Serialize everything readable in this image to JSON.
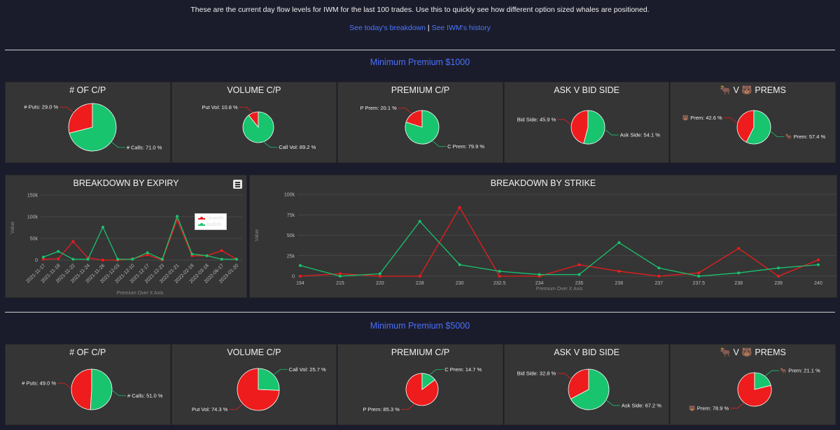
{
  "intro_text": "These are the current day flow levels for IWM for the last 100 trades. Use this to quickly see how different option sized whales are positioned.",
  "links": {
    "breakdown": "See today's breakdown",
    "separator": "|",
    "history": "See IWM's history"
  },
  "colors": {
    "red": "#ee1c1c",
    "green": "#18c46e",
    "link": "#4a78ff"
  },
  "sections": [
    {
      "title": "Minimum Premium $1000",
      "pies": [
        {
          "title": "# OF C/P",
          "chart_data": {
            "type": "pie",
            "slices": [
              {
                "label": "# Puts: 29.0 %",
                "value": 29.0,
                "color": "#ee1c1c"
              },
              {
                "label": "# Calls: 71.0 %",
                "value": 71.0,
                "color": "#18c46e"
              }
            ]
          }
        },
        {
          "title": "VOLUME C/P",
          "chart_data": {
            "type": "pie",
            "slices": [
              {
                "label": "Put Vol: 10.8 %",
                "value": 10.8,
                "color": "#ee1c1c"
              },
              {
                "label": "Call Vol: 89.2 %",
                "value": 89.2,
                "color": "#18c46e"
              }
            ]
          }
        },
        {
          "title": "PREMIUM C/P",
          "chart_data": {
            "type": "pie",
            "slices": [
              {
                "label": "P Prem: 20.1 %",
                "value": 20.1,
                "color": "#ee1c1c"
              },
              {
                "label": "C Prem: 79.9 %",
                "value": 79.9,
                "color": "#18c46e"
              }
            ]
          }
        },
        {
          "title": "ASK V BID SIDE",
          "chart_data": {
            "type": "pie",
            "slices": [
              {
                "label": "Bid Side: 45.9 %",
                "value": 45.9,
                "color": "#ee1c1c"
              },
              {
                "label": "Ask Side: 54.1 %",
                "value": 54.1,
                "color": "#18c46e"
              }
            ]
          }
        },
        {
          "title": "🐂 V 🐻 PREMS",
          "chart_data": {
            "type": "pie",
            "slices": [
              {
                "label": "🐻 Prem: 42.6 %",
                "value": 42.6,
                "color": "#ee1c1c"
              },
              {
                "label": "🐂 Prem: 57.4 %",
                "value": 57.4,
                "color": "#18c46e"
              }
            ]
          }
        }
      ]
    },
    {
      "title": "Minimum Premium $5000",
      "pies": [
        {
          "title": "# OF C/P",
          "chart_data": {
            "type": "pie",
            "slices": [
              {
                "label": "# Puts: 49.0 %",
                "value": 49.0,
                "color": "#ee1c1c"
              },
              {
                "label": "# Calls: 51.0 %",
                "value": 51.0,
                "color": "#18c46e"
              }
            ]
          }
        },
        {
          "title": "VOLUME C/P",
          "chart_data": {
            "type": "pie",
            "slices": [
              {
                "label": "Put Vol: 74.3 %",
                "value": 74.3,
                "color": "#ee1c1c"
              },
              {
                "label": "Call Vol: 25.7 %",
                "value": 25.7,
                "color": "#18c46e"
              }
            ]
          }
        },
        {
          "title": "PREMIUM C/P",
          "chart_data": {
            "type": "pie",
            "slices": [
              {
                "label": "P Prem: 85.3 %",
                "value": 85.3,
                "color": "#ee1c1c"
              },
              {
                "label": "C Prem: 14.7 %",
                "value": 14.7,
                "color": "#18c46e"
              }
            ]
          }
        },
        {
          "title": "ASK V BID SIDE",
          "chart_data": {
            "type": "pie",
            "slices": [
              {
                "label": "Bid Side: 32.8 %",
                "value": 32.8,
                "color": "#ee1c1c"
              },
              {
                "label": "Ask Side: 67.2 %",
                "value": 67.2,
                "color": "#18c46e"
              }
            ]
          }
        },
        {
          "title": "🐂 V 🐻 PREMS",
          "chart_data": {
            "type": "pie",
            "slices": [
              {
                "label": "🐻 Prem: 78.9 %",
                "value": 78.9,
                "color": "#ee1c1c"
              },
              {
                "label": "🐂 Prem: 21.1 %",
                "value": 21.1,
                "color": "#18c46e"
              }
            ]
          }
        }
      ]
    }
  ],
  "expiry_chart": {
    "title": "BREAKDOWN BY EXPIRY",
    "chart_data": {
      "type": "line",
      "categories": [
        "2021-11-17",
        "2021-11-19",
        "2021-11-22",
        "2021-11-24",
        "2021-11-26",
        "2021-12-03",
        "2021-12-10",
        "2021-12-17",
        "2021-12-23",
        "2022-01-21",
        "2022-02-18",
        "2022-03-18",
        "2022-06-17",
        "2023-01-20"
      ],
      "series": [
        {
          "name": "bearish",
          "color": "#ee1c1c",
          "values": [
            2000,
            3000,
            43000,
            5000,
            0,
            0,
            3000,
            12000,
            0,
            93000,
            10000,
            10000,
            22000,
            2000
          ]
        },
        {
          "name": "bullish",
          "color": "#18c46e",
          "values": [
            7000,
            20000,
            2000,
            2000,
            76000,
            2000,
            2000,
            17000,
            2000,
            101000,
            14000,
            10000,
            2000,
            2000
          ]
        }
      ],
      "ylim": [
        0,
        150000
      ],
      "yticks": [
        "0",
        "50k",
        "100k",
        "150k"
      ],
      "ylabel": "Value",
      "xlabel": "Premium Over X Axis",
      "legend": "top-right",
      "grid": true
    }
  },
  "strike_chart": {
    "title": "BREAKDOWN BY STRIKE",
    "chart_data": {
      "type": "line",
      "categories": [
        "194",
        "215",
        "220",
        "228",
        "230",
        "232.5",
        "234",
        "235",
        "236",
        "237",
        "237.5",
        "238",
        "239",
        "240"
      ],
      "series": [
        {
          "name": "bearish",
          "color": "#ee1c1c",
          "values": [
            0,
            3000,
            0,
            0,
            84000,
            0,
            0,
            14000,
            6000,
            0,
            4000,
            34000,
            0,
            20000
          ]
        },
        {
          "name": "bullish",
          "color": "#18c46e",
          "values": [
            13000,
            0,
            3000,
            67000,
            14000,
            6000,
            2000,
            2000,
            41000,
            10000,
            0,
            4000,
            10000,
            14000
          ]
        }
      ],
      "ylim": [
        0,
        100000
      ],
      "yticks": [
        "0",
        "25k",
        "50k",
        "75k",
        "100k"
      ],
      "ylabel": "Value",
      "xlabel": "Premium Over X Axis",
      "grid": true
    }
  }
}
